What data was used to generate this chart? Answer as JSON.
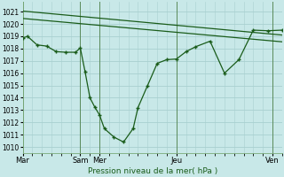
{
  "background_color": "#c8e8e8",
  "grid_color": "#a8d0d0",
  "line_color": "#1a5c1a",
  "ylim": [
    1009.5,
    1021.8
  ],
  "yticks": [
    1010,
    1011,
    1012,
    1013,
    1014,
    1015,
    1016,
    1017,
    1018,
    1019,
    1020,
    1021
  ],
  "xlabel": "Pression niveau de la mer( hPa )",
  "day_labels": [
    "Mar",
    "",
    "Sam",
    "Mer",
    "",
    "Jeu",
    "",
    "Ven"
  ],
  "xlim": [
    0,
    27
  ],
  "trend1_x": [
    0,
    27
  ],
  "trend1_y": [
    1021.05,
    1019.1
  ],
  "trend2_x": [
    0,
    27
  ],
  "trend2_y": [
    1020.45,
    1018.55
  ],
  "main_x": [
    0,
    0.5,
    1.5,
    2.5,
    3.5,
    4.5,
    5.5,
    6.0,
    6.5,
    7.0,
    7.5,
    8.0,
    8.5,
    9.5,
    10.5,
    11.5,
    12.0,
    13.0,
    14.0,
    15.0,
    16.0,
    17.0,
    18.0,
    19.5,
    21.0,
    22.5,
    24.0,
    25.5,
    27.0
  ],
  "main_y": [
    1018.85,
    1019.0,
    1018.3,
    1018.2,
    1017.75,
    1017.7,
    1017.7,
    1018.05,
    1016.1,
    1014.0,
    1013.25,
    1012.6,
    1011.5,
    1010.8,
    1010.4,
    1011.5,
    1013.2,
    1015.0,
    1016.8,
    1017.1,
    1017.15,
    1017.75,
    1018.15,
    1018.6,
    1016.0,
    1017.1,
    1019.5,
    1019.45,
    1019.5
  ],
  "day_tick_positions": [
    0,
    6,
    8,
    16,
    26
  ],
  "day_tick_labels": [
    "Mar",
    "Sam",
    "Mer",
    "Jeu",
    "Ven"
  ]
}
